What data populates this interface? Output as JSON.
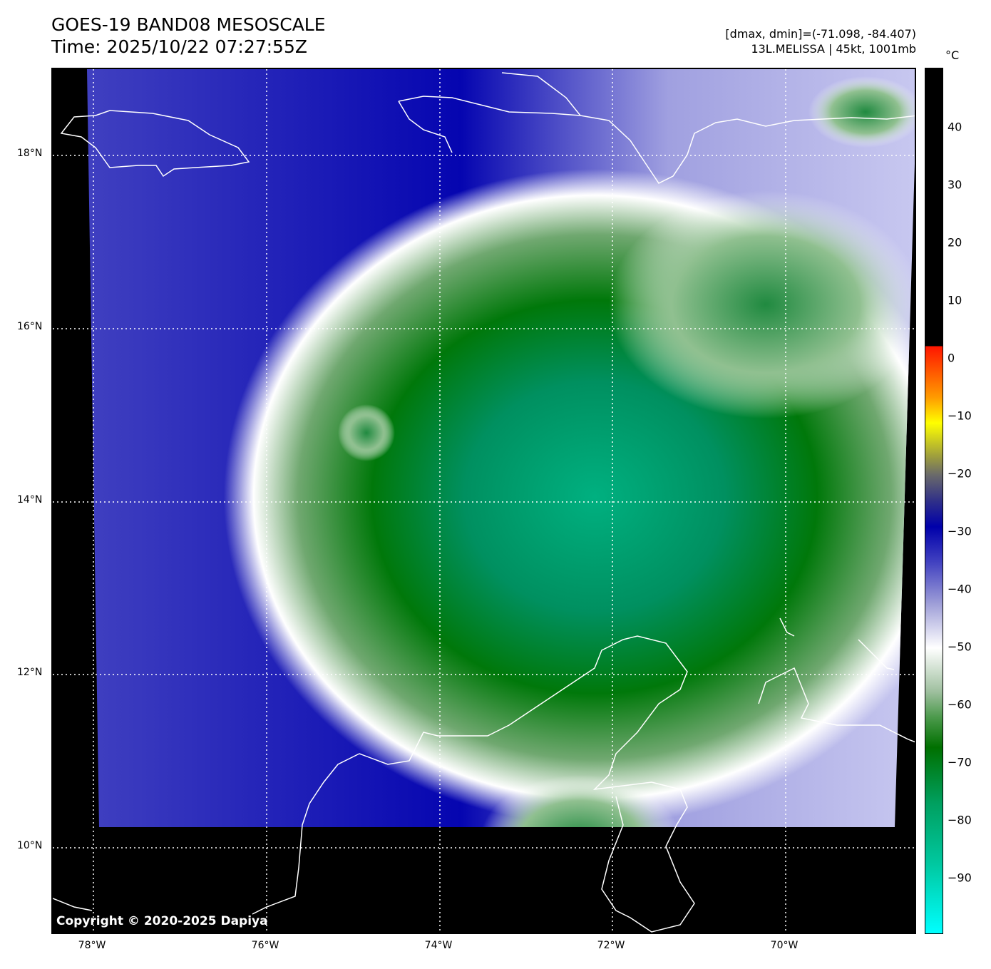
{
  "header": {
    "title": "GOES-19 BAND08 MESOSCALE",
    "time": "Time: 2025/10/22 07:27:55Z",
    "range": "[dmax, dmin]=(-71.098, -84.407)",
    "storm": "13L.MELISSA | 45kt, 1001mb"
  },
  "map": {
    "copyright": "Copyright © 2020-2025 Dapiya",
    "lat_labels": [
      "18°N",
      "16°N",
      "14°N",
      "12°N",
      "10°N"
    ],
    "lon_labels": [
      "78°W",
      "76°W",
      "74°W",
      "72°W",
      "70°W"
    ]
  },
  "colorbar": {
    "unit": "°C",
    "ticks": [
      "40",
      "30",
      "20",
      "10",
      "0",
      "−10",
      "−20",
      "−30",
      "−40",
      "−50",
      "−60",
      "−70",
      "−80",
      "−90"
    ],
    "colors": {
      "warm": "#ff1500",
      "yellow": "#ffff00",
      "cold_blue": "#0000aa",
      "white": "#ffffff",
      "green": "#007000",
      "cyan": "#00ffff"
    }
  }
}
